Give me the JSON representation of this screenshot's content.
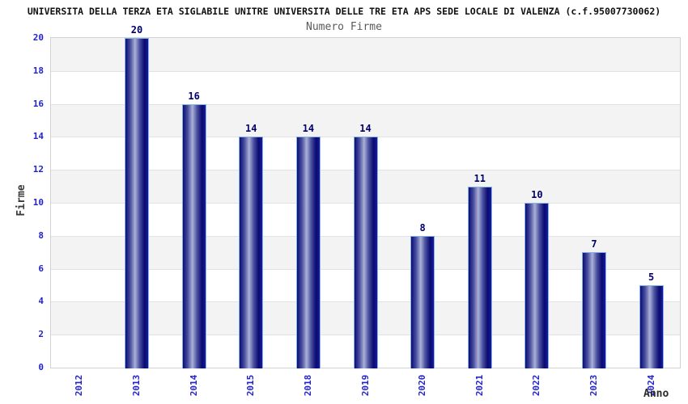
{
  "header": {
    "title": "UNIVERSITA DELLA TERZA ETA SIGLABILE UNITRE UNIVERSITA DELLE TRE ETA APS SEDE LOCALE DI VALENZA (c.f.95007730062)",
    "subtitle": "Numero Firme"
  },
  "chart_data": {
    "type": "bar",
    "title": "Numero Firme",
    "categories": [
      "2012",
      "2013",
      "2014",
      "2015",
      "2018",
      "2019",
      "2020",
      "2021",
      "2022",
      "2023",
      "2024"
    ],
    "values": [
      0,
      20,
      16,
      14,
      14,
      14,
      8,
      11,
      10,
      7,
      5
    ],
    "xlabel": "Anno",
    "ylabel": "Firme",
    "ylim": [
      0,
      20
    ],
    "ytick_step": 2,
    "ytick_labels": [
      "0",
      "2",
      "4",
      "6",
      "8",
      "10",
      "12",
      "14",
      "16",
      "18",
      "20"
    ],
    "grid": true,
    "band_fill": "alternating horizontal bands every 2 units",
    "value_labels_shown": true,
    "legend_position": "none",
    "x_tick_rotation_deg": 90
  },
  "colors": {
    "title_text": "#111111",
    "subtitle_text": "#5a5a5a",
    "tick_label_blue": "#2323cd",
    "value_label_navy": "#00006b",
    "axis_name_text": "#3a3a3a",
    "band_gray": "#f3f3f3",
    "band_white": "#ffffff",
    "gridline": "#e2e2e2",
    "plot_border": "#d2d2d2",
    "bar_edge_dark": "#0c0c74",
    "bar_highlight": "#abb1d6",
    "bar_border_lightblue": "#82b4e8"
  }
}
